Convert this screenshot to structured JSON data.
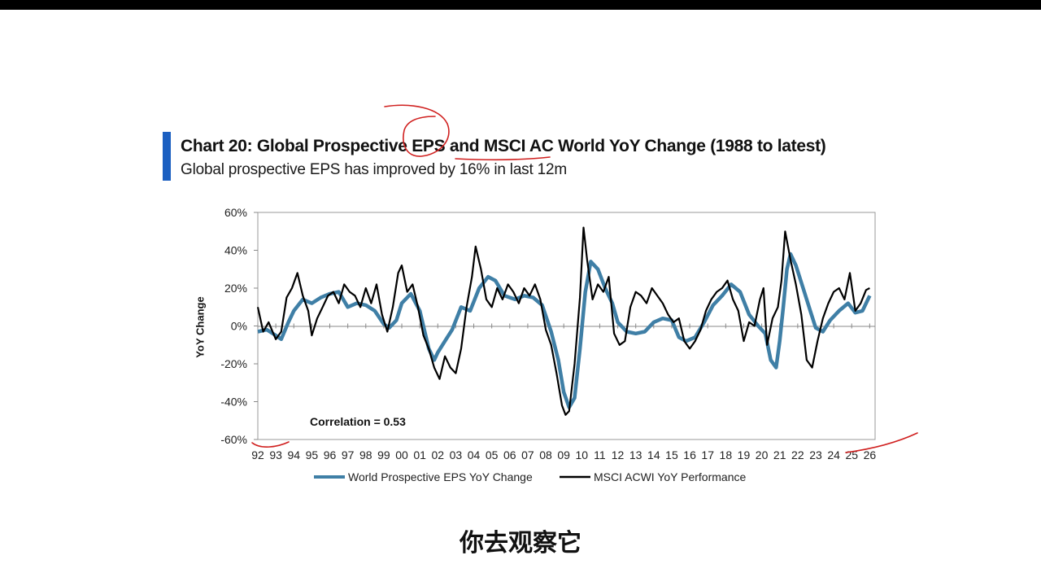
{
  "header": {
    "title": "Chart 20: Global Prospective EPS and MSCI AC World YoY Change (1988 to latest)",
    "subtitle": "Global prospective EPS has improved by 16% in last 12m"
  },
  "caption": "你去观察它",
  "colors": {
    "accent": "#1b5fc1",
    "eps_series": "#3f7fa6",
    "msci_series": "#000000",
    "annotation_ink": "#d0201f"
  },
  "chart_data": {
    "type": "line",
    "ylabel": "YoY Change",
    "xlabel": "",
    "ylim": [
      -60,
      60
    ],
    "xlim": [
      1992,
      2026.3
    ],
    "y_ticks": [
      "60%",
      "40%",
      "20%",
      "0%",
      "-20%",
      "-40%",
      "-60%"
    ],
    "x_ticks": [
      "92",
      "93",
      "94",
      "95",
      "96",
      "97",
      "98",
      "99",
      "00",
      "01",
      "02",
      "03",
      "04",
      "05",
      "06",
      "07",
      "08",
      "09",
      "10",
      "11",
      "12",
      "13",
      "14",
      "15",
      "16",
      "17",
      "18",
      "19",
      "20",
      "21",
      "22",
      "23",
      "24",
      "25",
      "26"
    ],
    "grid": false,
    "legend_position": "bottom",
    "annotation": "Correlation = 0.53",
    "series": [
      {
        "name": "World Prospective EPS YoY Change",
        "color": "#3f7fa6",
        "points": [
          [
            1992.0,
            -3
          ],
          [
            1992.5,
            -2
          ],
          [
            1993.0,
            -5
          ],
          [
            1993.3,
            -7
          ],
          [
            1993.7,
            2
          ],
          [
            1994.0,
            8
          ],
          [
            1994.5,
            14
          ],
          [
            1995.0,
            12
          ],
          [
            1995.5,
            15
          ],
          [
            1996.0,
            17
          ],
          [
            1996.5,
            18
          ],
          [
            1997.0,
            10
          ],
          [
            1997.5,
            12
          ],
          [
            1998.0,
            11
          ],
          [
            1998.5,
            8
          ],
          [
            1999.0,
            1
          ],
          [
            1999.3,
            -1
          ],
          [
            1999.7,
            3
          ],
          [
            2000.0,
            12
          ],
          [
            2000.5,
            17
          ],
          [
            2001.0,
            8
          ],
          [
            2001.5,
            -12
          ],
          [
            2001.8,
            -18
          ],
          [
            2002.0,
            -14
          ],
          [
            2002.4,
            -8
          ],
          [
            2002.8,
            -2
          ],
          [
            2003.3,
            10
          ],
          [
            2003.8,
            8
          ],
          [
            2004.3,
            20
          ],
          [
            2004.8,
            26
          ],
          [
            2005.2,
            24
          ],
          [
            2005.7,
            16
          ],
          [
            2006.3,
            14
          ],
          [
            2006.8,
            16
          ],
          [
            2007.3,
            15
          ],
          [
            2007.8,
            11
          ],
          [
            2008.3,
            -3
          ],
          [
            2008.7,
            -18
          ],
          [
            2009.0,
            -35
          ],
          [
            2009.3,
            -43
          ],
          [
            2009.6,
            -38
          ],
          [
            2009.9,
            -12
          ],
          [
            2010.2,
            18
          ],
          [
            2010.5,
            34
          ],
          [
            2010.9,
            30
          ],
          [
            2011.3,
            20
          ],
          [
            2011.7,
            12
          ],
          [
            2012.0,
            2
          ],
          [
            2012.5,
            -3
          ],
          [
            2013.0,
            -4
          ],
          [
            2013.5,
            -3
          ],
          [
            2014.0,
            2
          ],
          [
            2014.5,
            4
          ],
          [
            2015.0,
            3
          ],
          [
            2015.4,
            -6
          ],
          [
            2015.8,
            -8
          ],
          [
            2016.3,
            -6
          ],
          [
            2016.8,
            2
          ],
          [
            2017.3,
            11
          ],
          [
            2017.8,
            16
          ],
          [
            2018.3,
            22
          ],
          [
            2018.8,
            18
          ],
          [
            2019.3,
            6
          ],
          [
            2019.8,
            0
          ],
          [
            2020.2,
            -4
          ],
          [
            2020.5,
            -18
          ],
          [
            2020.8,
            -22
          ],
          [
            2021.0,
            -8
          ],
          [
            2021.2,
            10
          ],
          [
            2021.4,
            30
          ],
          [
            2021.6,
            38
          ],
          [
            2021.9,
            32
          ],
          [
            2022.3,
            20
          ],
          [
            2022.7,
            8
          ],
          [
            2023.0,
            -1
          ],
          [
            2023.4,
            -3
          ],
          [
            2023.8,
            3
          ],
          [
            2024.3,
            8
          ],
          [
            2024.8,
            12
          ],
          [
            2025.2,
            7
          ],
          [
            2025.6,
            8
          ],
          [
            2026.0,
            16
          ]
        ]
      },
      {
        "name": "MSCI ACWI YoY Performance",
        "color": "#000000",
        "points": [
          [
            1992.0,
            10
          ],
          [
            1992.3,
            -3
          ],
          [
            1992.6,
            2
          ],
          [
            1993.0,
            -7
          ],
          [
            1993.3,
            -3
          ],
          [
            1993.6,
            15
          ],
          [
            1993.9,
            20
          ],
          [
            1994.2,
            28
          ],
          [
            1994.5,
            16
          ],
          [
            1994.8,
            8
          ],
          [
            1995.0,
            -5
          ],
          [
            1995.3,
            4
          ],
          [
            1995.6,
            10
          ],
          [
            1995.9,
            16
          ],
          [
            1996.2,
            18
          ],
          [
            1996.5,
            12
          ],
          [
            1996.8,
            22
          ],
          [
            1997.1,
            18
          ],
          [
            1997.4,
            16
          ],
          [
            1997.7,
            10
          ],
          [
            1998.0,
            20
          ],
          [
            1998.3,
            12
          ],
          [
            1998.6,
            22
          ],
          [
            1998.9,
            6
          ],
          [
            1999.2,
            -3
          ],
          [
            1999.5,
            10
          ],
          [
            1999.8,
            28
          ],
          [
            2000.0,
            32
          ],
          [
            2000.3,
            18
          ],
          [
            2000.6,
            22
          ],
          [
            2000.9,
            10
          ],
          [
            2001.2,
            -5
          ],
          [
            2001.5,
            -12
          ],
          [
            2001.8,
            -22
          ],
          [
            2002.1,
            -28
          ],
          [
            2002.4,
            -16
          ],
          [
            2002.7,
            -22
          ],
          [
            2003.0,
            -25
          ],
          [
            2003.3,
            -12
          ],
          [
            2003.6,
            10
          ],
          [
            2003.9,
            26
          ],
          [
            2004.1,
            42
          ],
          [
            2004.4,
            30
          ],
          [
            2004.7,
            14
          ],
          [
            2005.0,
            10
          ],
          [
            2005.3,
            20
          ],
          [
            2005.6,
            14
          ],
          [
            2005.9,
            22
          ],
          [
            2006.2,
            18
          ],
          [
            2006.5,
            12
          ],
          [
            2006.8,
            20
          ],
          [
            2007.1,
            16
          ],
          [
            2007.4,
            22
          ],
          [
            2007.7,
            14
          ],
          [
            2008.0,
            -2
          ],
          [
            2008.3,
            -10
          ],
          [
            2008.6,
            -25
          ],
          [
            2008.9,
            -42
          ],
          [
            2009.1,
            -47
          ],
          [
            2009.3,
            -45
          ],
          [
            2009.6,
            -20
          ],
          [
            2009.9,
            15
          ],
          [
            2010.1,
            52
          ],
          [
            2010.3,
            35
          ],
          [
            2010.6,
            14
          ],
          [
            2010.9,
            22
          ],
          [
            2011.2,
            18
          ],
          [
            2011.5,
            26
          ],
          [
            2011.8,
            -4
          ],
          [
            2012.1,
            -10
          ],
          [
            2012.4,
            -8
          ],
          [
            2012.7,
            10
          ],
          [
            2013.0,
            18
          ],
          [
            2013.3,
            16
          ],
          [
            2013.6,
            12
          ],
          [
            2013.9,
            20
          ],
          [
            2014.2,
            16
          ],
          [
            2014.5,
            12
          ],
          [
            2014.8,
            6
          ],
          [
            2015.1,
            2
          ],
          [
            2015.4,
            4
          ],
          [
            2015.7,
            -8
          ],
          [
            2016.0,
            -12
          ],
          [
            2016.3,
            -8
          ],
          [
            2016.6,
            -2
          ],
          [
            2016.9,
            8
          ],
          [
            2017.2,
            14
          ],
          [
            2017.5,
            18
          ],
          [
            2017.8,
            20
          ],
          [
            2018.1,
            24
          ],
          [
            2018.4,
            14
          ],
          [
            2018.7,
            8
          ],
          [
            2019.0,
            -8
          ],
          [
            2019.3,
            2
          ],
          [
            2019.6,
            0
          ],
          [
            2019.9,
            14
          ],
          [
            2020.1,
            20
          ],
          [
            2020.3,
            -10
          ],
          [
            2020.6,
            4
          ],
          [
            2020.9,
            10
          ],
          [
            2021.1,
            24
          ],
          [
            2021.3,
            50
          ],
          [
            2021.6,
            35
          ],
          [
            2021.9,
            22
          ],
          [
            2022.2,
            6
          ],
          [
            2022.5,
            -18
          ],
          [
            2022.8,
            -22
          ],
          [
            2023.1,
            -8
          ],
          [
            2023.4,
            4
          ],
          [
            2023.7,
            12
          ],
          [
            2024.0,
            18
          ],
          [
            2024.3,
            20
          ],
          [
            2024.6,
            14
          ],
          [
            2024.9,
            28
          ],
          [
            2025.2,
            8
          ],
          [
            2025.5,
            12
          ],
          [
            2025.8,
            19
          ],
          [
            2026.0,
            20
          ]
        ]
      }
    ]
  }
}
